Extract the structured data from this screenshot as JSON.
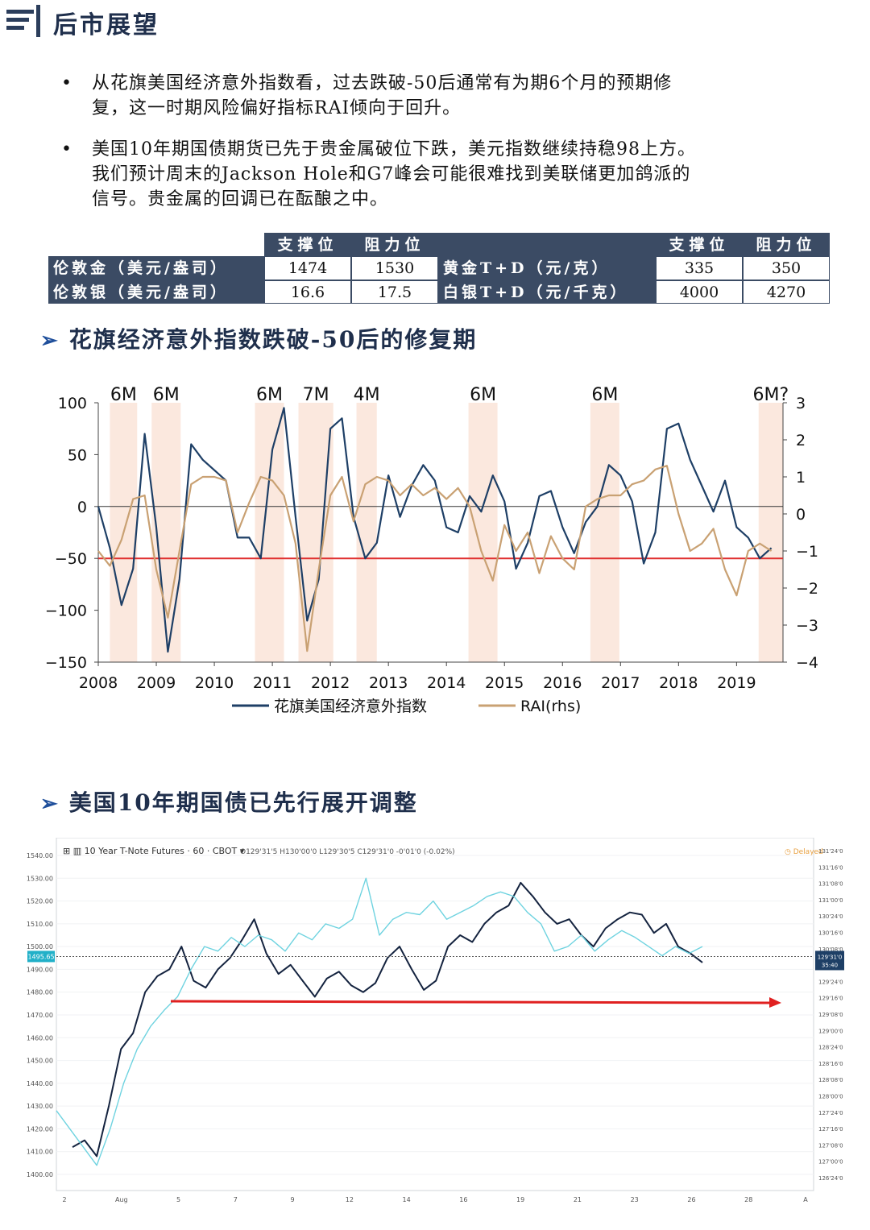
{
  "header": {
    "title": "后市展望"
  },
  "bullets": [
    "从花旗美国经济意外指数看，过去跌破-50后通常有为期6个月的预期修复，这一时期风险偏好指标RAI倾向于回升。",
    "美国10年期国债期货已先于贵金属破位下跌，美元指数继续持稳98上方。我们预计周末的Jackson Hole和G7峰会可能很难找到美联储更加鸽派的信号。贵金属的回调已在酝酿之中。"
  ],
  "bullet_lines": [
    [
      "从花旗美国经济意外指数看，过去跌破-50后通常有为期6个月的预期修",
      "复，这一时期风险偏好指标RAI倾向于回升。"
    ],
    [
      "美国10年期国债期货已先于贵金属破位下跌，美元指数继续持稳98上方。",
      "我们预计周末的Jackson Hole和G7峰会可能很难找到美联储更加鸽派的",
      "信号。贵金属的回调已在酝酿之中。"
    ]
  ],
  "levels_table": {
    "header_support": "支撑位",
    "header_resistance": "阻力位",
    "rows": [
      {
        "left_label": "伦敦金（美元/盎司）",
        "left_support": "1474",
        "left_resistance": "1530",
        "right_label": "黄金T+D（元/克）",
        "right_support": "335",
        "right_resistance": "350"
      },
      {
        "left_label": "伦敦银（美元/盎司）",
        "left_support": "16.6",
        "left_resistance": "17.5",
        "right_label": "白银T+D（元/千克）",
        "right_support": "4000",
        "right_resistance": "4270"
      }
    ]
  },
  "section1": {
    "title": "花旗经济意外指数跌破-50后的修复期"
  },
  "section2": {
    "title": "美国10年期国债已先行展开调整"
  },
  "chart_data": [
    {
      "type": "line",
      "x_ticks": [
        "2008",
        "2009",
        "2010",
        "2011",
        "2012",
        "2013",
        "2014",
        "2015",
        "2016",
        "2017",
        "2018",
        "2019"
      ],
      "y_left_ticks": [
        "100",
        "50",
        "0",
        "-50",
        "-100",
        "-150"
      ],
      "y_right_ticks": [
        "3",
        "2",
        "1",
        "0",
        "-1",
        "-2",
        "-3",
        "-4"
      ],
      "ylim_left": [
        -150,
        100
      ],
      "ylim_right": [
        -4,
        3
      ],
      "xlim": [
        2008.0,
        2019.8
      ],
      "reference_line": {
        "value": -50,
        "color": "#e03030"
      },
      "shaded_periods": [
        {
          "start": 2008.2,
          "end": 2008.67,
          "label": "6M"
        },
        {
          "start": 2008.92,
          "end": 2009.42,
          "label": "6M"
        },
        {
          "start": 2010.7,
          "end": 2011.2,
          "label": "6M"
        },
        {
          "start": 2011.45,
          "end": 2012.05,
          "label": "7M"
        },
        {
          "start": 2012.45,
          "end": 2012.8,
          "label": "4M"
        },
        {
          "start": 2014.38,
          "end": 2014.88,
          "label": "6M"
        },
        {
          "start": 2016.48,
          "end": 2016.98,
          "label": "6M"
        },
        {
          "start": 2019.38,
          "end": 2019.8,
          "label": "6M?"
        }
      ],
      "series": [
        {
          "name": "花旗美国经济意外指数",
          "axis": "left",
          "color": "#1e3f66",
          "x": [
            2008.0,
            2008.2,
            2008.4,
            2008.6,
            2008.8,
            2009.0,
            2009.2,
            2009.4,
            2009.6,
            2009.8,
            2010.0,
            2010.2,
            2010.4,
            2010.6,
            2010.8,
            2011.0,
            2011.2,
            2011.4,
            2011.6,
            2011.8,
            2012.0,
            2012.2,
            2012.4,
            2012.6,
            2012.8,
            2013.0,
            2013.2,
            2013.4,
            2013.6,
            2013.8,
            2014.0,
            2014.2,
            2014.4,
            2014.6,
            2014.8,
            2015.0,
            2015.2,
            2015.4,
            2015.6,
            2015.8,
            2016.0,
            2016.2,
            2016.4,
            2016.6,
            2016.8,
            2017.0,
            2017.2,
            2017.4,
            2017.6,
            2017.8,
            2018.0,
            2018.2,
            2018.4,
            2018.6,
            2018.8,
            2019.0,
            2019.2,
            2019.4,
            2019.6
          ],
          "values": [
            0,
            -40,
            -95,
            -60,
            70,
            -20,
            -140,
            -70,
            60,
            45,
            35,
            25,
            -30,
            -30,
            -50,
            55,
            95,
            -10,
            -110,
            -70,
            75,
            85,
            -10,
            -50,
            -35,
            30,
            -10,
            20,
            40,
            25,
            -20,
            -25,
            10,
            -5,
            30,
            5,
            -60,
            -35,
            10,
            15,
            -20,
            -45,
            -15,
            0,
            40,
            30,
            5,
            -55,
            -25,
            75,
            80,
            45,
            20,
            -5,
            25,
            -20,
            -30,
            -50,
            -40
          ]
        },
        {
          "name": "RAI(rhs)",
          "axis": "right",
          "color": "#c9a173",
          "x": [
            2008.0,
            2008.2,
            2008.4,
            2008.6,
            2008.8,
            2009.0,
            2009.2,
            2009.4,
            2009.6,
            2009.8,
            2010.0,
            2010.2,
            2010.4,
            2010.6,
            2010.8,
            2011.0,
            2011.2,
            2011.4,
            2011.6,
            2011.8,
            2012.0,
            2012.2,
            2012.4,
            2012.6,
            2012.8,
            2013.0,
            2013.2,
            2013.4,
            2013.6,
            2013.8,
            2014.0,
            2014.2,
            2014.4,
            2014.6,
            2014.8,
            2015.0,
            2015.2,
            2015.4,
            2015.6,
            2015.8,
            2016.0,
            2016.2,
            2016.4,
            2016.6,
            2016.8,
            2017.0,
            2017.2,
            2017.4,
            2017.6,
            2017.8,
            2018.0,
            2018.2,
            2018.4,
            2018.6,
            2018.8,
            2019.0,
            2019.2,
            2019.4,
            2019.6
          ],
          "values": [
            -1.0,
            -1.4,
            -0.7,
            0.4,
            0.5,
            -1.5,
            -2.8,
            -1.0,
            0.8,
            1.0,
            1.0,
            0.9,
            -0.5,
            0.3,
            1.0,
            0.9,
            0.5,
            -0.8,
            -3.7,
            -1.5,
            0.5,
            1.0,
            -0.2,
            0.8,
            1.0,
            0.9,
            0.5,
            0.8,
            0.5,
            0.7,
            0.4,
            0.7,
            0.2,
            -1.0,
            -1.8,
            -0.3,
            -1.0,
            -0.5,
            -1.6,
            -0.6,
            -1.2,
            -1.5,
            0.2,
            0.4,
            0.5,
            0.5,
            0.8,
            0.9,
            1.2,
            1.3,
            0.0,
            -1.0,
            -0.8,
            -0.4,
            -1.5,
            -2.2,
            -1.0,
            -0.8,
            -1.0
          ]
        }
      ],
      "legend": "bottom"
    },
    {
      "type": "line",
      "title": "10 Year T-Note Futures · 60 · CBOT",
      "ohlc_text": "O129'31'5  H130'00'0  L129'30'5  C129'31'0  -0'01'0 (-0.02%)",
      "status": "Delayed",
      "price_tag_left": "1495.65",
      "price_tag_right": "129'31'0",
      "price_tag_right_sub": "35:40",
      "y_left_ticks": [
        "1540.00",
        "1530.00",
        "1520.00",
        "1510.00",
        "1500.00",
        "1490.00",
        "1480.00",
        "1470.00",
        "1460.00",
        "1450.00",
        "1440.00",
        "1430.00",
        "1420.00",
        "1410.00",
        "1400.00"
      ],
      "y_right_ticks": [
        "131'24'0",
        "131'16'0",
        "131'08'0",
        "131'00'0",
        "130'24'0",
        "130'16'0",
        "130'08'0",
        "130'00'0",
        "129'24'0",
        "129'16'0",
        "129'08'0",
        "129'00'0",
        "128'24'0",
        "128'16'0",
        "128'08'0",
        "128'00'0",
        "127'24'0",
        "127'16'0",
        "127'08'0",
        "127'00'0",
        "126'24'0"
      ],
      "x_ticks": [
        "2",
        "Aug",
        "5",
        "7",
        "9",
        "12",
        "14",
        "16",
        "19",
        "21",
        "23",
        "26",
        "28",
        "A"
      ],
      "ylim_left": [
        1400,
        1540
      ],
      "series": [
        {
          "name": "",
          "color": "#14233f",
          "values": [
            1412,
            1415,
            1408,
            1430,
            1455,
            1462,
            1480,
            1487,
            1490,
            1500,
            1485,
            1482,
            1490,
            1495,
            1503,
            1512,
            1497,
            1488,
            1492,
            1485,
            1478,
            1486,
            1489,
            1483,
            1480,
            1484,
            1495,
            1500,
            1490,
            1481,
            1485,
            1500,
            1505,
            1502,
            1510,
            1515,
            1518,
            1528,
            1522,
            1515,
            1510,
            1512,
            1505,
            1500,
            1508,
            1512,
            1515,
            1514,
            1506,
            1510,
            1500,
            1497,
            1493
          ]
        },
        {
          "name": "",
          "color": "#6fd3e0",
          "values": [
            1428,
            1420,
            1412,
            1404,
            1420,
            1440,
            1455,
            1465,
            1472,
            1478,
            1490,
            1500,
            1498,
            1504,
            1500,
            1505,
            1503,
            1498,
            1506,
            1503,
            1510,
            1508,
            1512,
            1530,
            1505,
            1512,
            1515,
            1514,
            1520,
            1512,
            1515,
            1518,
            1522,
            1524,
            1522,
            1515,
            1510,
            1498,
            1500,
            1505,
            1498,
            1503,
            1507,
            1504,
            1500,
            1496,
            1500,
            1497,
            1500
          ]
        }
      ],
      "annotation_arrow": {
        "value": 1476,
        "color": "#e02020"
      }
    }
  ],
  "colors": {
    "navy": "#1e3f66",
    "tan": "#c9a173",
    "red": "#e03030",
    "shade": "#fbe8de",
    "table_dark": "#3b4b64"
  }
}
